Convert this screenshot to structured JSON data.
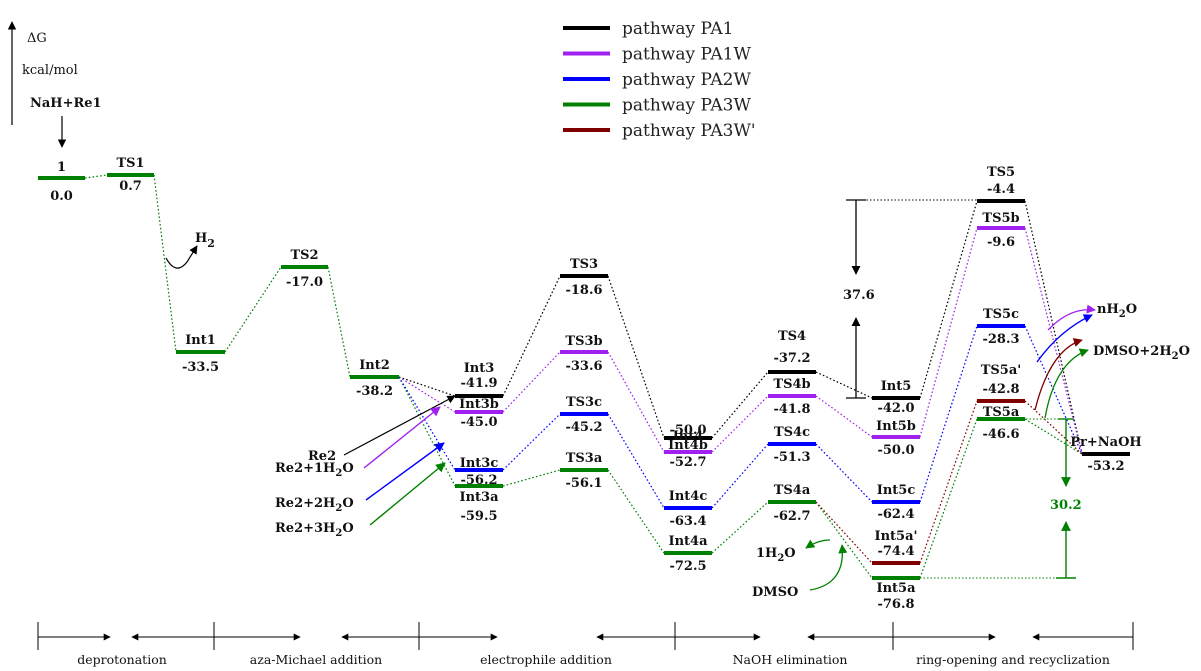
{
  "axis": {
    "label": "ΔG",
    "unit": "kcal/mol"
  },
  "reactants": "NaH+Re1",
  "legend": [
    {
      "label": "pathway PA1",
      "color": "#000000"
    },
    {
      "label": "pathway PA1W",
      "color": "#a020f0"
    },
    {
      "label": "pathway PA2W",
      "color": "#0000ff"
    },
    {
      "label": "pathway PA3W",
      "color": "#008000"
    },
    {
      "label": "pathway PA3W'",
      "color": "#800000"
    }
  ],
  "species": [
    {
      "id": "s1",
      "name": "1",
      "value": "0.0"
    },
    {
      "id": "TS1",
      "name": "TS1",
      "value": "0.7"
    },
    {
      "id": "Int1",
      "name": "Int1",
      "value": "-33.5"
    },
    {
      "id": "TS2",
      "name": "TS2",
      "value": "-17.0"
    },
    {
      "id": "Int2",
      "name": "Int2",
      "value": "-38.2"
    },
    {
      "id": "Int3",
      "name": "Int3",
      "value": "-41.9"
    },
    {
      "id": "Int3b",
      "name": "Int3b",
      "value": "-45.0"
    },
    {
      "id": "Int3c",
      "name": "Int3c",
      "value": "-56.2"
    },
    {
      "id": "Int3a",
      "name": "Int3a",
      "value": "-59.5"
    },
    {
      "id": "TS3",
      "name": "TS3",
      "value": "-18.6"
    },
    {
      "id": "TS3b",
      "name": "TS3b",
      "value": "-33.6"
    },
    {
      "id": "TS3c",
      "name": "TS3c",
      "value": "-45.2"
    },
    {
      "id": "TS3a",
      "name": "TS3a",
      "value": "-56.1"
    },
    {
      "id": "Int4",
      "name": "Int4",
      "value": "-50.0"
    },
    {
      "id": "Int4b",
      "name": "Int4b",
      "value": "-52.7"
    },
    {
      "id": "Int4c",
      "name": "Int4c",
      "value": "-63.4"
    },
    {
      "id": "Int4a",
      "name": "Int4a",
      "value": "-72.5"
    },
    {
      "id": "TS4",
      "name": "TS4",
      "value": "-37.2"
    },
    {
      "id": "TS4b",
      "name": "TS4b",
      "value": "-41.8"
    },
    {
      "id": "TS4c",
      "name": "TS4c",
      "value": "-51.3"
    },
    {
      "id": "TS4a",
      "name": "TS4a",
      "value": "-62.7"
    },
    {
      "id": "Int5",
      "name": "Int5",
      "value": "-42.0"
    },
    {
      "id": "Int5b",
      "name": "Int5b",
      "value": "-50.0"
    },
    {
      "id": "Int5c",
      "name": "Int5c",
      "value": "-62.4"
    },
    {
      "id": "Int5ap",
      "name": "Int5a'",
      "value": "-74.4"
    },
    {
      "id": "Int5a",
      "name": "Int5a",
      "value": "-76.8"
    },
    {
      "id": "TS5",
      "name": "TS5",
      "value": "-4.4"
    },
    {
      "id": "TS5b",
      "name": "TS5b",
      "value": "-9.6"
    },
    {
      "id": "TS5c",
      "name": "TS5c",
      "value": "-28.3"
    },
    {
      "id": "TS5ap",
      "name": "TS5a'",
      "value": "-42.8"
    },
    {
      "id": "TS5a",
      "name": "TS5a",
      "value": "-46.6"
    },
    {
      "id": "Pr",
      "name": "Pr+NaOH",
      "value": "-53.2"
    }
  ],
  "side_species": {
    "h2": "H",
    "h2_sub": "2",
    "re2": "Re2",
    "re2_1w": "Re2+1H",
    "re2_2w": "Re2+2H",
    "re2_3w": "Re2+3H",
    "water_o": "O",
    "one_h2o": "1H",
    "dmso": "DMSO",
    "nh2o": "nH",
    "dmso_2h2o": "DMSO+2H",
    "sub2": "2"
  },
  "barriers": {
    "black": "37.6",
    "green": "30.2"
  },
  "phases": [
    "deprotonation",
    "aza-Michael addition",
    "electrophile addition",
    "NaOH elimination",
    "ring-opening and recyclization"
  ]
}
